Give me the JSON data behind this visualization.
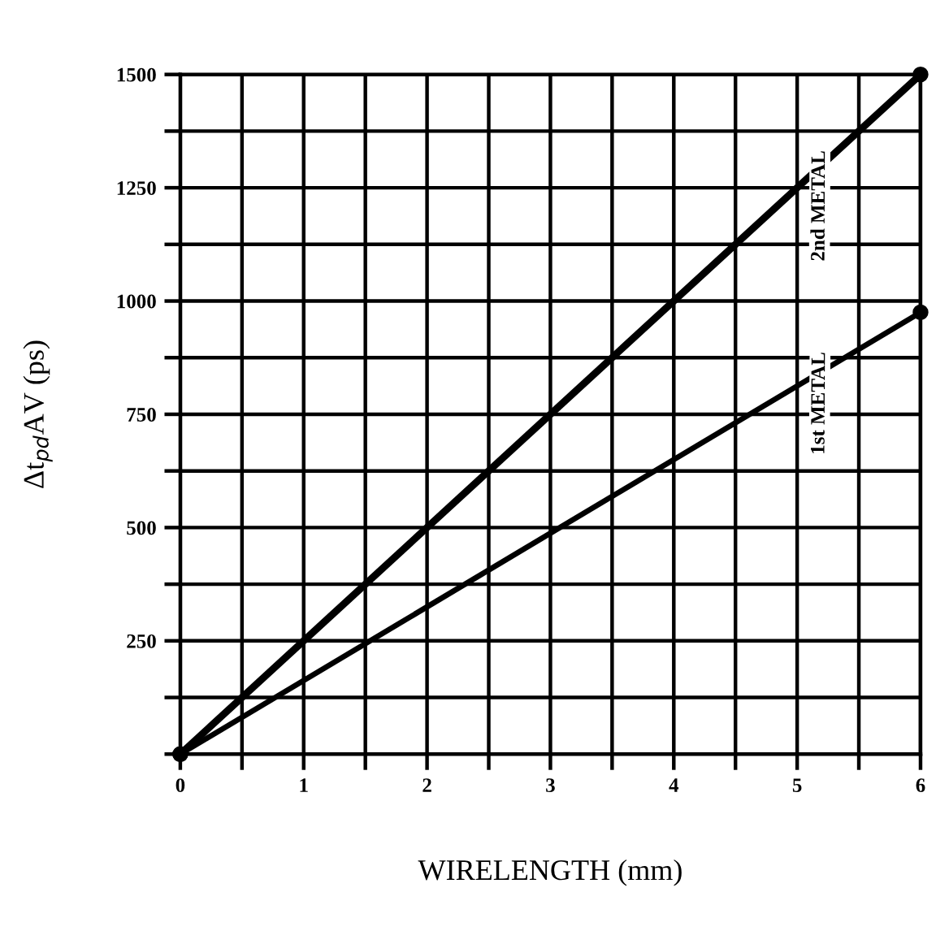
{
  "chart_data": {
    "type": "line",
    "xlabel": "WIRELENGTH (mm)",
    "ylabel": "Δt$_{pd}$AV (ps)",
    "x": [
      0,
      6
    ],
    "series": [
      {
        "name": "2nd METAL",
        "color": "#000000",
        "values": [
          0,
          1500
        ]
      },
      {
        "name": "1st METAL",
        "color": "#000000",
        "values": [
          0,
          975
        ]
      }
    ],
    "xlim": [
      0,
      6
    ],
    "ylim": [
      0,
      1500
    ],
    "xticks": [
      0,
      {
        "value": 0.5,
        "label": null
      },
      1,
      {
        "value": 1.5,
        "label": null
      },
      2,
      {
        "value": 2.5,
        "label": null
      },
      3,
      {
        "value": 3.5,
        "label": null
      },
      4,
      {
        "value": 4.5,
        "label": null
      },
      5,
      {
        "value": 5.5,
        "label": null
      },
      6
    ],
    "yticks": [
      {
        "value": 0,
        "label": null
      },
      {
        "value": 125,
        "label": null
      },
      250,
      {
        "value": 375,
        "label": null
      },
      500,
      {
        "value": 625,
        "label": null
      },
      750,
      {
        "value": 875,
        "label": null
      },
      1000,
      {
        "value": 1125,
        "label": null
      },
      1250,
      {
        "value": 1375,
        "label": null
      },
      1500
    ],
    "grid": true,
    "legend": false,
    "marker": "circle",
    "line_style": "solid"
  }
}
